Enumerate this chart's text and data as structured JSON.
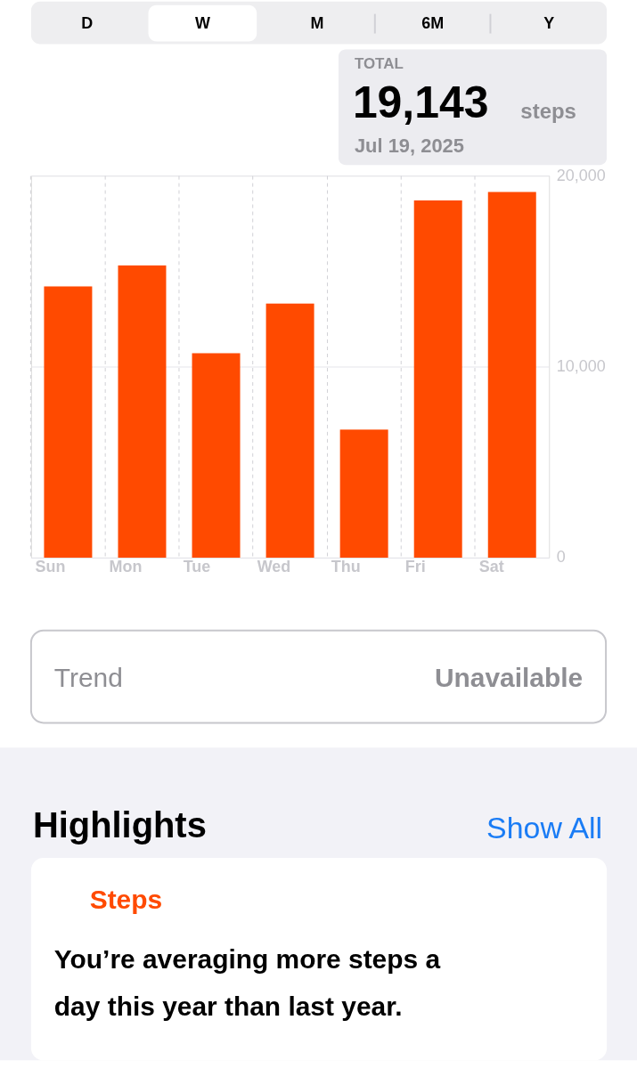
{
  "chart_data": {
    "type": "bar",
    "categories": [
      "Sun",
      "Mon",
      "Tue",
      "Wed",
      "Thu",
      "Fri",
      "Sat"
    ],
    "values": [
      14200,
      15300,
      10700,
      13300,
      6700,
      18700,
      19143
    ],
    "color": "#ff4a00",
    "ylim": [
      0,
      20000
    ],
    "yticks": [
      0,
      {
        "value": 10000,
        "label": "10,000"
      },
      {
        "value": 20000,
        "label": "20,000"
      }
    ],
    "grid": true,
    "annotations": [
      "D",
      "W",
      "M",
      "6M",
      "Y",
      "TOTAL",
      "19,143",
      "steps",
      "Jul 19, 2025",
      "Trend",
      "Unavailable",
      "Highlights",
      "Show All",
      "Steps",
      "You’re averaging more steps a day this year than last year."
    ]
  }
}
